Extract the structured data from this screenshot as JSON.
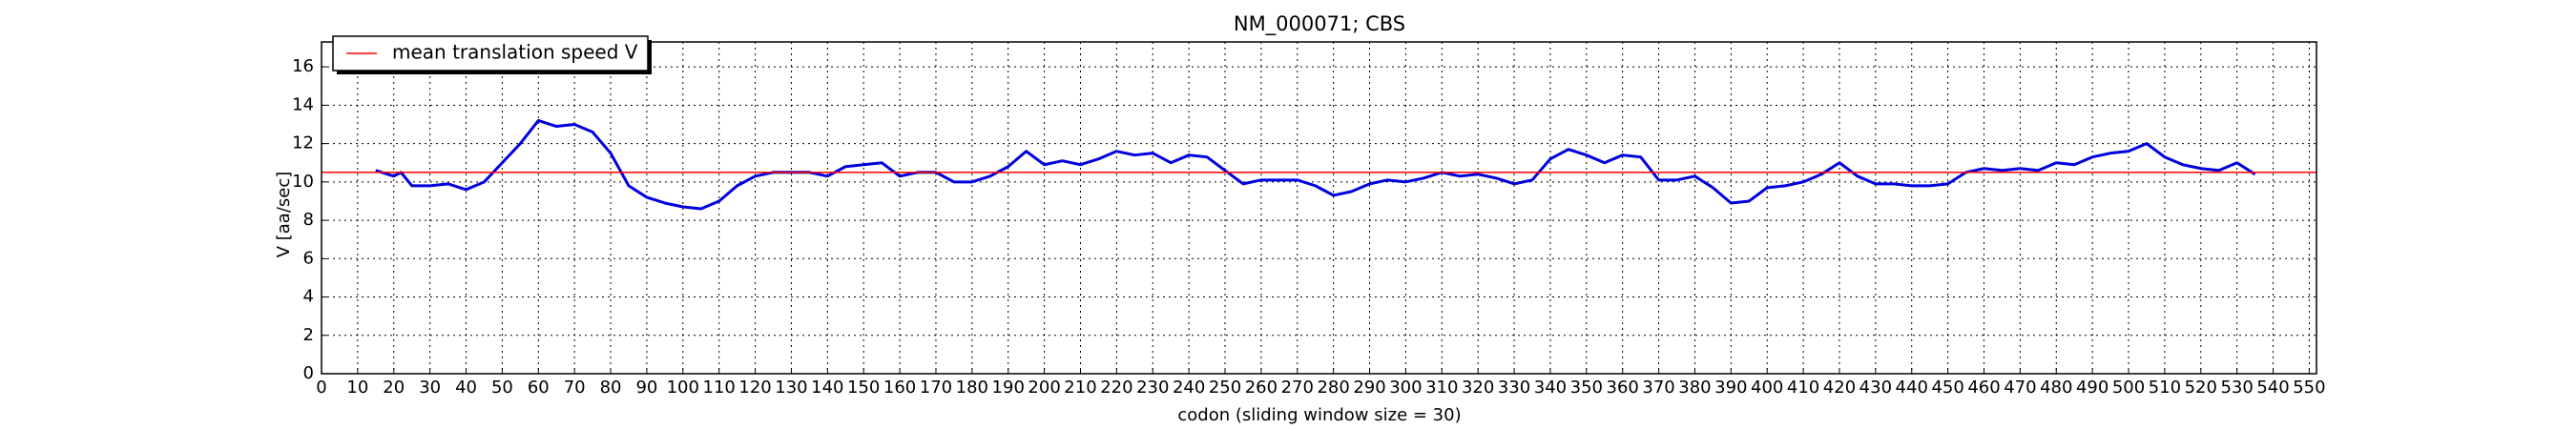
{
  "chart_data": {
    "type": "line",
    "title": "NM_000071; CBS",
    "xlabel": "codon  (sliding window size = 30)",
    "ylabel": "V [aa/sec]",
    "x": [
      15,
      20,
      22,
      25,
      30,
      35,
      40,
      45,
      50,
      55,
      60,
      65,
      70,
      75,
      80,
      85,
      90,
      95,
      100,
      105,
      110,
      115,
      120,
      125,
      130,
      135,
      140,
      145,
      150,
      155,
      160,
      165,
      170,
      175,
      180,
      185,
      190,
      195,
      200,
      205,
      210,
      215,
      220,
      225,
      230,
      235,
      240,
      245,
      250,
      255,
      260,
      265,
      270,
      275,
      280,
      285,
      290,
      295,
      300,
      305,
      310,
      315,
      320,
      325,
      330,
      335,
      340,
      345,
      350,
      355,
      360,
      365,
      370,
      375,
      380,
      385,
      390,
      395,
      400,
      405,
      410,
      415,
      420,
      425,
      430,
      435,
      440,
      445,
      450,
      455,
      460,
      465,
      470,
      475,
      480,
      485,
      490,
      495,
      500,
      505,
      510,
      515,
      520,
      525,
      530,
      535
    ],
    "series": [
      {
        "color": "#0000dd",
        "values": [
          10.6,
          10.3,
          10.5,
          9.8,
          9.8,
          9.9,
          9.6,
          10.0,
          11.0,
          12.0,
          13.2,
          12.9,
          13.0,
          12.6,
          11.5,
          9.8,
          9.2,
          8.9,
          8.7,
          8.6,
          9.0,
          9.8,
          10.3,
          10.5,
          10.5,
          10.5,
          10.3,
          10.8,
          10.9,
          11.0,
          10.3,
          10.5,
          10.5,
          10.0,
          10.0,
          10.3,
          10.8,
          11.6,
          10.9,
          11.1,
          10.9,
          11.2,
          11.6,
          11.4,
          11.5,
          11.0,
          11.4,
          11.3,
          10.6,
          9.9,
          10.1,
          10.1,
          10.1,
          9.8,
          9.3,
          9.5,
          9.9,
          10.1,
          10.0,
          10.2,
          10.5,
          10.3,
          10.4,
          10.2,
          9.9,
          10.1,
          11.2,
          11.7,
          11.4,
          11.0,
          11.4,
          11.3,
          10.1,
          10.1,
          10.3,
          9.7,
          8.9,
          9.0,
          9.7,
          9.8,
          10.0,
          10.4,
          11.0,
          10.3,
          9.9,
          9.9,
          9.8,
          9.8,
          9.9,
          10.5,
          10.7,
          10.6,
          10.7,
          10.6,
          11.0,
          10.9,
          11.3,
          11.5,
          11.6,
          12.0,
          11.3,
          10.9,
          10.7,
          10.6,
          11.0,
          10.4
        ]
      }
    ],
    "hlines": [
      {
        "name": "mean translation speed V",
        "value": 10.5,
        "color": "#ff0000"
      }
    ],
    "xlim": [
      0,
      552
    ],
    "ylim": [
      0,
      17.3
    ],
    "xticks": [
      0,
      10,
      20,
      30,
      40,
      50,
      60,
      70,
      80,
      90,
      100,
      110,
      120,
      130,
      140,
      150,
      160,
      170,
      180,
      190,
      200,
      210,
      220,
      230,
      240,
      250,
      260,
      270,
      280,
      290,
      300,
      310,
      320,
      330,
      340,
      350,
      360,
      370,
      380,
      390,
      400,
      410,
      420,
      430,
      440,
      450,
      460,
      470,
      480,
      490,
      500,
      510,
      520,
      530,
      540,
      550
    ],
    "yticks": [
      0,
      2,
      4,
      6,
      8,
      10,
      12,
      14,
      16
    ],
    "grid": true,
    "legend": "upper left"
  }
}
